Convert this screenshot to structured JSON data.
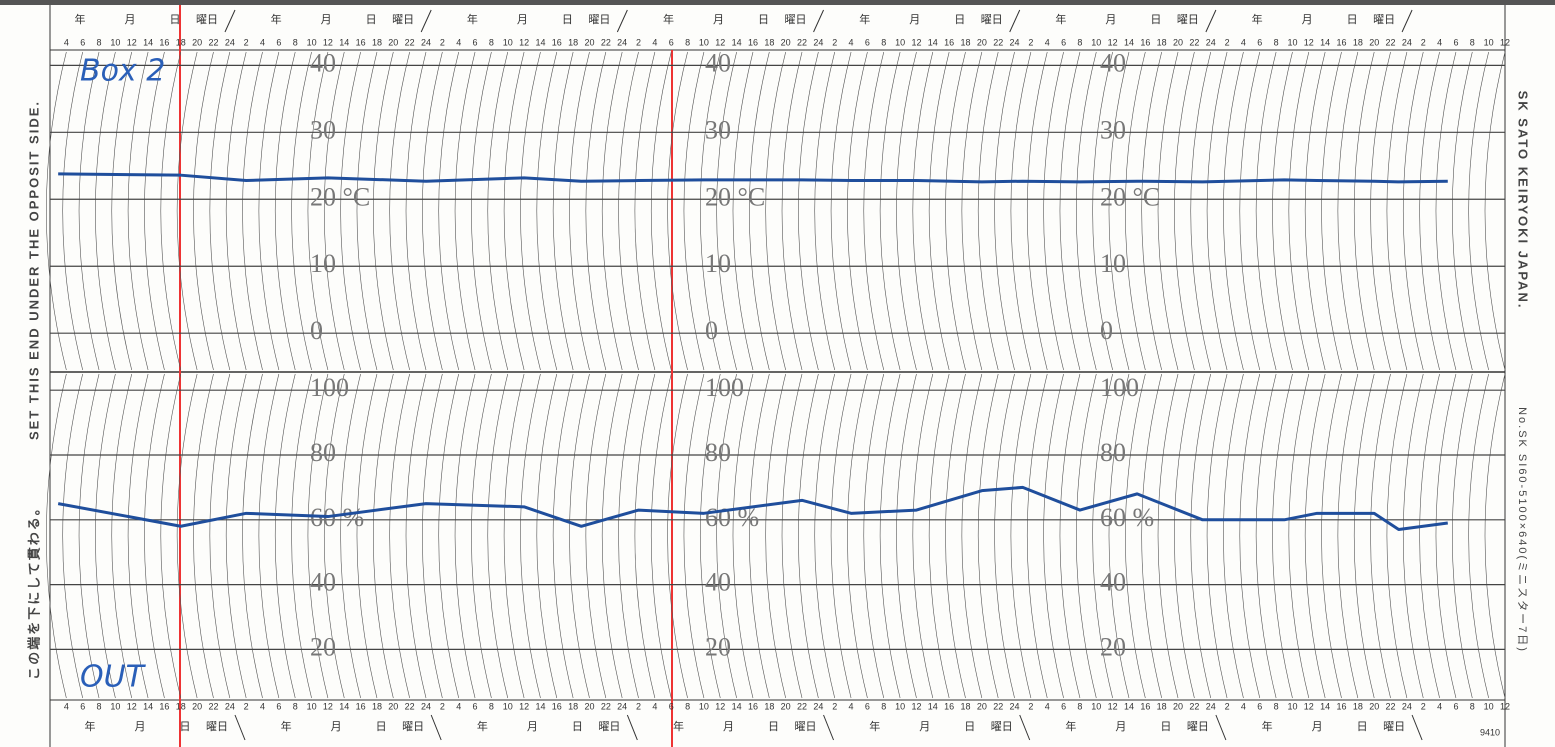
{
  "chart_data": [
    {
      "type": "line",
      "x": [
        3,
        18,
        26,
        36,
        48,
        60,
        67,
        74,
        82,
        94,
        100,
        108,
        116,
        121,
        128,
        135,
        143,
        153,
        157,
        164,
        167,
        173
      ],
      "series": [
        {
          "color": "#1f4e9c",
          "values": [
            23.8,
            23.6,
            22.8,
            23.2,
            22.7,
            23.2,
            22.7,
            22.8,
            22.9,
            22.9,
            22.8,
            22.8,
            22.6,
            22.7,
            22.6,
            22.7,
            22.6,
            22.9,
            22.8,
            22.7,
            22.6,
            22.7
          ]
        }
      ],
      "xlim": [
        2,
        180
      ],
      "xticks": [
        4,
        6,
        8,
        10,
        12,
        14,
        16,
        18,
        20,
        22,
        24,
        {
          "value": 26,
          "label": "2"
        },
        {
          "value": 28,
          "label": "4"
        },
        {
          "value": 30,
          "label": "6"
        },
        {
          "value": 32,
          "label": "8"
        },
        {
          "value": 34,
          "label": "10"
        },
        {
          "value": 36,
          "label": "12"
        },
        {
          "value": 38,
          "label": "14"
        },
        {
          "value": 40,
          "label": "16"
        },
        {
          "value": 42,
          "label": "18"
        },
        {
          "value": 44,
          "label": "20"
        },
        {
          "value": 46,
          "label": "22"
        },
        {
          "value": 48,
          "label": "24"
        },
        {
          "value": 50,
          "label": "2"
        },
        {
          "value": 52,
          "label": "4"
        },
        {
          "value": 54,
          "label": "6"
        },
        {
          "value": 56,
          "label": "8"
        },
        {
          "value": 58,
          "label": "10"
        },
        {
          "value": 60,
          "label": "12"
        },
        {
          "value": 62,
          "label": "14"
        },
        {
          "value": 64,
          "label": "16"
        },
        {
          "value": 66,
          "label": "18"
        },
        {
          "value": 68,
          "label": "20"
        },
        {
          "value": 70,
          "label": "22"
        },
        {
          "value": 72,
          "label": "24"
        },
        {
          "value": 74,
          "label": "2"
        },
        {
          "value": 76,
          "label": "4"
        },
        {
          "value": 78,
          "label": "6"
        },
        {
          "value": 80,
          "label": "8"
        },
        {
          "value": 82,
          "label": "10"
        },
        {
          "value": 84,
          "label": "12"
        },
        {
          "value": 86,
          "label": "14"
        },
        {
          "value": 88,
          "label": "16"
        },
        {
          "value": 90,
          "label": "18"
        },
        {
          "value": 92,
          "label": "20"
        },
        {
          "value": 94,
          "label": "22"
        },
        {
          "value": 96,
          "label": "24"
        },
        {
          "value": 98,
          "label": "2"
        },
        {
          "value": 100,
          "label": "4"
        },
        {
          "value": 102,
          "label": "6"
        },
        {
          "value": 104,
          "label": "8"
        },
        {
          "value": 106,
          "label": "10"
        },
        {
          "value": 108,
          "label": "12"
        },
        {
          "value": 110,
          "label": "14"
        },
        {
          "value": 112,
          "label": "16"
        },
        {
          "value": 114,
          "label": "18"
        },
        {
          "value": 116,
          "label": "20"
        },
        {
          "value": 118,
          "label": "22"
        },
        {
          "value": 120,
          "label": "24"
        },
        {
          "value": 122,
          "label": "2"
        },
        {
          "value": 124,
          "label": "4"
        },
        {
          "value": 126,
          "label": "6"
        },
        {
          "value": 128,
          "label": "8"
        },
        {
          "value": 130,
          "label": "10"
        },
        {
          "value": 132,
          "label": "12"
        },
        {
          "value": 134,
          "label": "14"
        },
        {
          "value": 136,
          "label": "16"
        },
        {
          "value": 138,
          "label": "18"
        },
        {
          "value": 140,
          "label": "20"
        },
        {
          "value": 142,
          "label": "22"
        },
        {
          "value": 144,
          "label": "24"
        },
        {
          "value": 146,
          "label": "2"
        },
        {
          "value": 148,
          "label": "4"
        },
        {
          "value": 150,
          "label": "6"
        },
        {
          "value": 152,
          "label": "8"
        },
        {
          "value": 154,
          "label": "10"
        },
        {
          "value": 156,
          "label": "12"
        },
        {
          "value": 158,
          "label": "14"
        },
        {
          "value": 160,
          "label": "16"
        },
        {
          "value": 162,
          "label": "18"
        },
        {
          "value": 164,
          "label": "20"
        },
        {
          "value": 166,
          "label": "22"
        },
        {
          "value": 168,
          "label": "24"
        },
        {
          "value": 170,
          "label": "2"
        },
        {
          "value": 172,
          "label": "4"
        },
        {
          "value": 174,
          "label": "6"
        },
        {
          "value": 176,
          "label": "8"
        },
        {
          "value": 178,
          "label": "10"
        },
        {
          "value": 180,
          "label": "12"
        }
      ],
      "ylim": [
        -5.5,
        42
      ],
      "yticks": [
        0,
        10,
        {
          "value": 20,
          "label": "20 °C"
        },
        30,
        40
      ],
      "grid": true,
      "annotations": [
        "Box 2"
      ]
    },
    {
      "type": "line",
      "x": [
        3,
        18,
        26,
        36,
        48,
        60,
        67,
        74,
        82,
        94,
        100,
        108,
        116,
        121,
        128,
        135,
        143,
        153,
        157,
        164,
        167,
        173
      ],
      "series": [
        {
          "color": "#1f4e9c",
          "values": [
            65,
            58,
            62,
            61,
            65,
            64,
            58,
            63,
            62,
            66,
            62,
            63,
            69,
            70,
            63,
            68,
            60,
            60,
            62,
            62,
            57,
            59
          ]
        }
      ],
      "xlim": [
        2,
        180
      ],
      "ylim": [
        5,
        105
      ],
      "yticks": [
        20,
        40,
        {
          "value": 60,
          "label": "60 %"
        },
        80,
        100
      ],
      "grid": true,
      "annotations": [
        "OUT"
      ]
    }
  ],
  "day_header": [
    "年",
    "月",
    "日",
    "曜日"
  ],
  "left_text": [
    "SET THIS END UNDER THE OPPOSIT SIDE.",
    "この端を下にして貫わる。"
  ],
  "right_text": [
    "SK SATO KEIRYOKI  JAPAN.",
    "No.SK SI60-5100×640(ミニスター7日)"
  ],
  "form_number": "9410"
}
